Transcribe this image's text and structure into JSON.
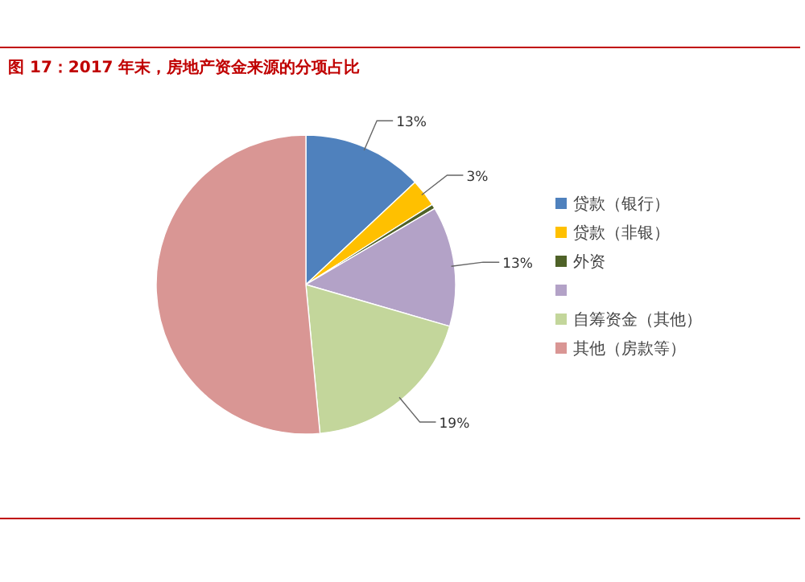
{
  "chart_data": {
    "type": "pie",
    "title": "图 17：2017 年末，房地产资金来源的分项占比",
    "categories": [
      "贷款（银行）",
      "贷款（非银）",
      "外资",
      null,
      "自筹资金（其他）",
      "其他（房款等）"
    ],
    "values": [
      13,
      3,
      0.5,
      13,
      19,
      51.5
    ],
    "value_labels": [
      "13%",
      "3%",
      null,
      "13%",
      "19%",
      null
    ],
    "colors": [
      "#4f81bd",
      "#ffc000",
      "#4f6228",
      "#b3a2c7",
      "#c3d69b",
      "#d99694"
    ],
    "legend": "right"
  }
}
